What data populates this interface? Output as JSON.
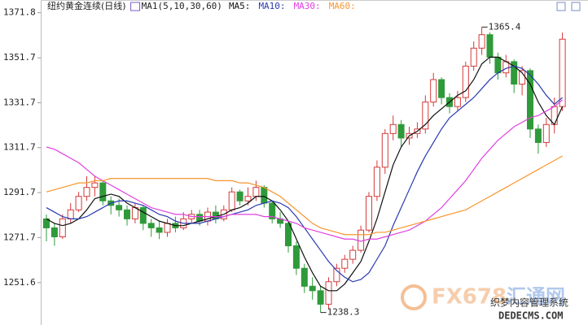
{
  "chart_data": {
    "type": "candlestick",
    "title": "纽约黄金连续(日线)",
    "indicator": "MA1(5,10,30,60)",
    "ylim": [
      1236,
      1376
    ],
    "yticks": [
      1251.6,
      1271.7,
      1291.7,
      1311.7,
      1331.7,
      1351.7,
      1371.8
    ],
    "up_color": "#d43a3a",
    "down_color": "#2f9a3a",
    "open": [
      1280,
      1276,
      1272,
      1280,
      1284,
      1290,
      1294,
      1296,
      1288,
      1286,
      1284,
      1280,
      1285,
      1278,
      1276,
      1274,
      1278,
      1276,
      1280,
      1282,
      1279,
      1283,
      1280,
      1284,
      1292,
      1288,
      1290,
      1294,
      1287,
      1280,
      1278,
      1268,
      1258,
      1250,
      1248,
      1242,
      1252,
      1258,
      1262,
      1266,
      1275,
      1290,
      1303,
      1318,
      1322,
      1316,
      1318,
      1320,
      1332,
      1342,
      1334,
      1330,
      1334,
      1348,
      1356,
      1362,
      1352,
      1345,
      1350,
      1340,
      1346,
      1320,
      1314,
      1322,
      1330
    ],
    "high": [
      1282,
      1278,
      1282,
      1287,
      1292,
      1299,
      1299,
      1297,
      1290,
      1289,
      1286,
      1287,
      1286,
      1280,
      1279,
      1280,
      1281,
      1283,
      1284,
      1284,
      1285,
      1286,
      1286,
      1294,
      1293,
      1294,
      1297,
      1295,
      1288,
      1283,
      1279,
      1270,
      1260,
      1254,
      1250,
      1254,
      1260,
      1264,
      1268,
      1277,
      1292,
      1306,
      1320,
      1326,
      1324,
      1321,
      1323,
      1335,
      1345,
      1343,
      1336,
      1337,
      1350,
      1359,
      1365.4,
      1363,
      1354,
      1353,
      1351,
      1348,
      1347,
      1322,
      1325,
      1334,
      1363
    ],
    "low": [
      1270,
      1268,
      1271,
      1278,
      1283,
      1288,
      1290,
      1286,
      1282,
      1281,
      1277,
      1278,
      1275,
      1272,
      1271,
      1272,
      1274,
      1275,
      1278,
      1277,
      1277,
      1278,
      1279,
      1283,
      1286,
      1286,
      1288,
      1285,
      1278,
      1276,
      1265,
      1255,
      1247,
      1244,
      1238.3,
      1240,
      1250,
      1256,
      1260,
      1265,
      1274,
      1288,
      1300,
      1315,
      1312,
      1313,
      1316,
      1318,
      1330,
      1331,
      1327,
      1328,
      1332,
      1346,
      1353,
      1349,
      1342,
      1343,
      1336,
      1335,
      1316,
      1309,
      1312,
      1318,
      1328
    ],
    "close": [
      1276,
      1272,
      1280,
      1284,
      1290,
      1294,
      1296,
      1288,
      1286,
      1284,
      1280,
      1285,
      1278,
      1276,
      1274,
      1278,
      1276,
      1280,
      1282,
      1279,
      1283,
      1280,
      1284,
      1292,
      1288,
      1290,
      1294,
      1287,
      1280,
      1278,
      1268,
      1258,
      1250,
      1248,
      1242,
      1252,
      1258,
      1262,
      1266,
      1275,
      1290,
      1303,
      1318,
      1322,
      1316,
      1318,
      1320,
      1332,
      1342,
      1334,
      1330,
      1334,
      1348,
      1356,
      1362,
      1352,
      1345,
      1350,
      1340,
      1346,
      1320,
      1314,
      1322,
      1330,
      1360
    ],
    "series": [
      {
        "name": "MA5:",
        "color": "#111111",
        "values": [
          1280,
          1278,
          1277,
          1278,
          1280,
          1284,
          1289,
          1290,
          1291,
          1290,
          1287,
          1285,
          1283,
          1281,
          1279,
          1278,
          1277,
          1277,
          1278,
          1279,
          1280,
          1281,
          1282,
          1284,
          1285,
          1287,
          1290,
          1290,
          1288,
          1284,
          1279,
          1271,
          1263,
          1256,
          1250,
          1248,
          1248,
          1251,
          1256,
          1261,
          1270,
          1280,
          1292,
          1304,
          1312,
          1317,
          1319,
          1322,
          1326,
          1329,
          1332,
          1335,
          1337,
          1342,
          1349,
          1352,
          1352,
          1350,
          1348,
          1345,
          1340,
          1332,
          1326,
          1322,
          1330
        ]
      },
      {
        "name": "MA10:",
        "color": "#2a3ab0",
        "values": [
          1285,
          1283,
          1281,
          1280,
          1280,
          1281,
          1283,
          1285,
          1287,
          1288,
          1288,
          1287,
          1286,
          1284,
          1282,
          1281,
          1279,
          1278,
          1278,
          1278,
          1279,
          1280,
          1281,
          1282,
          1283,
          1284,
          1286,
          1287,
          1288,
          1287,
          1285,
          1281,
          1276,
          1271,
          1266,
          1261,
          1257,
          1254,
          1252,
          1253,
          1256,
          1262,
          1268,
          1277,
          1285,
          1293,
          1301,
          1308,
          1314,
          1320,
          1325,
          1328,
          1331,
          1334,
          1338,
          1342,
          1345,
          1347,
          1348,
          1347,
          1344,
          1340,
          1335,
          1331,
          1334
        ]
      },
      {
        "name": "MA30:",
        "color": "#e040e0",
        "values": [
          1312,
          1311,
          1309,
          1307,
          1305,
          1302,
          1299,
          1297,
          1295,
          1293,
          1291,
          1289,
          1287,
          1285,
          1284,
          1283,
          1282,
          1282,
          1281,
          1281,
          1281,
          1281,
          1281,
          1282,
          1282,
          1282,
          1282,
          1281,
          1281,
          1280,
          1279,
          1278,
          1276,
          1275,
          1274,
          1273,
          1272,
          1271,
          1271,
          1270,
          1271,
          1271,
          1272,
          1273,
          1274,
          1275,
          1277,
          1279,
          1282,
          1285,
          1289,
          1293,
          1297,
          1302,
          1307,
          1311,
          1315,
          1318,
          1321,
          1323,
          1325,
          1326,
          1328,
          1330,
          1333
        ]
      },
      {
        "name": "MA60:",
        "color": "#f7962e",
        "values": [
          1292,
          1293,
          1294,
          1295,
          1296,
          1296,
          1297,
          1297,
          1298,
          1298,
          1298,
          1298,
          1298,
          1298,
          1298,
          1298,
          1298,
          1298,
          1298,
          1298,
          1298,
          1297,
          1297,
          1297,
          1296,
          1296,
          1295,
          1294,
          1292,
          1290,
          1287,
          1284,
          1281,
          1278,
          1276,
          1275,
          1274,
          1273,
          1273,
          1273,
          1273,
          1274,
          1274,
          1275,
          1276,
          1277,
          1278,
          1279,
          1280,
          1281,
          1282,
          1283,
          1284,
          1286,
          1288,
          1290,
          1292,
          1294,
          1296,
          1298,
          1300,
          1302,
          1304,
          1306,
          1308
        ]
      }
    ],
    "watermark": [
      "FX678",
      "汇通网",
      "织梦内容管理系统",
      "DEDECMS.COM"
    ]
  }
}
